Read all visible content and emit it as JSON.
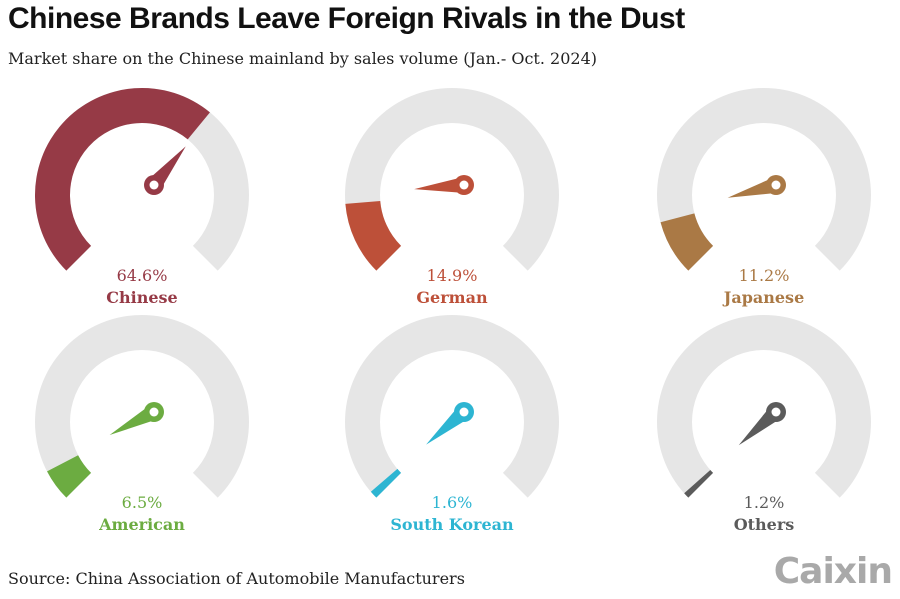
{
  "title": "Chinese Brands Leave Foreign Rivals in the Dust",
  "subtitle": "Market share on the Chinese mainland by sales volume (Jan.- Oct. 2024)",
  "source": "Source: China Association of Automobile Manufacturers",
  "logo": "Caixin",
  "colors": {
    "track": "#e6e6e6"
  },
  "chart_data": {
    "type": "gauge",
    "title": "Chinese Brands Leave Foreign Rivals in the Dust",
    "unit": "%",
    "range": [
      0,
      100
    ],
    "series": [
      {
        "name": "Chinese",
        "value": 64.6,
        "label": "64.6%",
        "color": "#963a46"
      },
      {
        "name": "German",
        "value": 14.9,
        "label": "14.9%",
        "color": "#bd5039"
      },
      {
        "name": "Japanese",
        "value": 11.2,
        "label": "11.2%",
        "color": "#aa7945"
      },
      {
        "name": "American",
        "value": 6.5,
        "label": "6.5%",
        "color": "#6cac41"
      },
      {
        "name": "South Korean",
        "value": 1.6,
        "label": "1.6%",
        "color": "#2db5d2"
      },
      {
        "name": "Others",
        "value": 1.2,
        "label": "1.2%",
        "color": "#5b5b5b"
      }
    ]
  }
}
